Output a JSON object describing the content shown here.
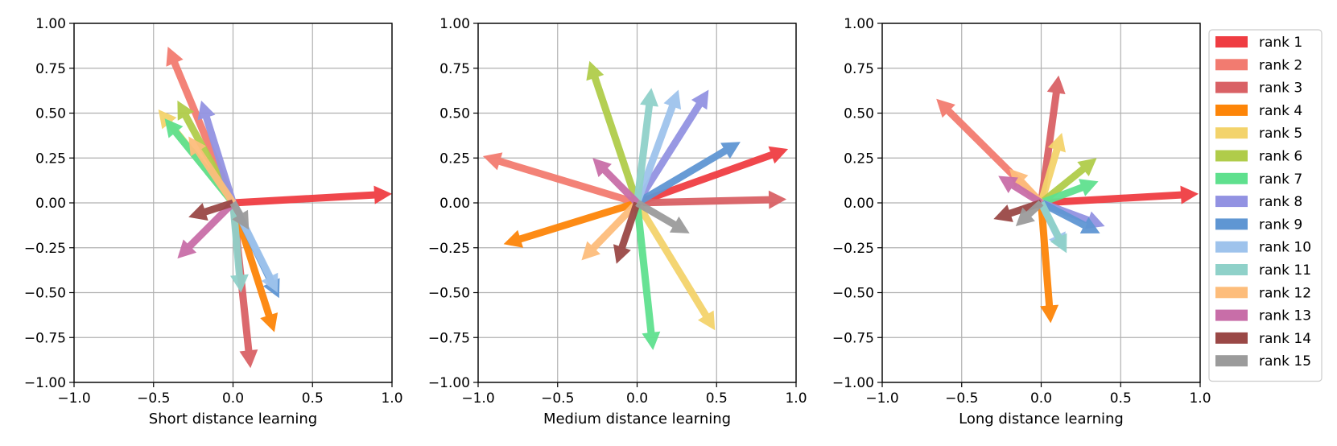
{
  "chart_data": [
    {
      "type": "quiver",
      "xlabel": "Short distance learning",
      "xlim": [
        -1.0,
        1.0
      ],
      "ylim": [
        -1.0,
        1.0
      ],
      "grid": true,
      "xticks": [
        "−1.0",
        "−0.5",
        "0.0",
        "0.5",
        "1.0"
      ],
      "yticks": [
        "−1.00",
        "−0.75",
        "−0.50",
        "−0.25",
        "0.00",
        "0.25",
        "0.50",
        "0.75",
        "1.00"
      ],
      "vectors": [
        {
          "series": "rank 1",
          "x": 1.0,
          "y": 0.05
        },
        {
          "series": "rank 2",
          "x": -0.41,
          "y": 0.87
        },
        {
          "series": "rank 3",
          "x": 0.11,
          "y": -0.92
        },
        {
          "series": "rank 4",
          "x": 0.26,
          "y": -0.72
        },
        {
          "series": "rank 5",
          "x": -0.47,
          "y": 0.52
        },
        {
          "series": "rank 6",
          "x": -0.35,
          "y": 0.57
        },
        {
          "series": "rank 7",
          "x": -0.43,
          "y": 0.47
        },
        {
          "series": "rank 8",
          "x": -0.2,
          "y": 0.57
        },
        {
          "series": "rank 9",
          "x": 0.29,
          "y": -0.53
        },
        {
          "series": "rank 10",
          "x": 0.28,
          "y": -0.5
        },
        {
          "series": "rank 11",
          "x": 0.05,
          "y": -0.5
        },
        {
          "series": "rank 12",
          "x": -0.28,
          "y": 0.37
        },
        {
          "series": "rank 13",
          "x": -0.35,
          "y": -0.31
        },
        {
          "series": "rank 14",
          "x": -0.28,
          "y": -0.08
        },
        {
          "series": "rank 15",
          "x": 0.1,
          "y": -0.15
        }
      ]
    },
    {
      "type": "quiver",
      "xlabel": "Medium distance learning",
      "xlim": [
        -1.0,
        1.0
      ],
      "ylim": [
        -1.0,
        1.0
      ],
      "grid": true,
      "xticks": [
        "−1.0",
        "−0.5",
        "0.0",
        "0.5",
        "1.0"
      ],
      "yticks": [
        "−1.00",
        "−0.75",
        "−0.50",
        "−0.25",
        "0.00",
        "0.25",
        "0.50",
        "0.75",
        "1.00"
      ],
      "vectors": [
        {
          "series": "rank 1",
          "x": 0.95,
          "y": 0.3
        },
        {
          "series": "rank 2",
          "x": -0.97,
          "y": 0.26
        },
        {
          "series": "rank 3",
          "x": 0.94,
          "y": 0.02
        },
        {
          "series": "rank 4",
          "x": -0.84,
          "y": -0.23
        },
        {
          "series": "rank 5",
          "x": 0.49,
          "y": -0.71
        },
        {
          "series": "rank 6",
          "x": -0.3,
          "y": 0.79
        },
        {
          "series": "rank 7",
          "x": 0.1,
          "y": -0.82
        },
        {
          "series": "rank 8",
          "x": 0.45,
          "y": 0.63
        },
        {
          "series": "rank 9",
          "x": 0.65,
          "y": 0.34
        },
        {
          "series": "rank 10",
          "x": 0.26,
          "y": 0.63
        },
        {
          "series": "rank 11",
          "x": 0.09,
          "y": 0.64
        },
        {
          "series": "rank 12",
          "x": -0.35,
          "y": -0.32
        },
        {
          "series": "rank 13",
          "x": -0.28,
          "y": 0.25
        },
        {
          "series": "rank 14",
          "x": -0.13,
          "y": -0.34
        },
        {
          "series": "rank 15",
          "x": 0.33,
          "y": -0.17
        }
      ]
    },
    {
      "type": "quiver",
      "xlabel": "Long distance learning",
      "xlim": [
        -1.0,
        1.0
      ],
      "ylim": [
        -1.0,
        1.0
      ],
      "grid": true,
      "xticks": [
        "−1.0",
        "−0.5",
        "0.0",
        "0.5",
        "1.0"
      ],
      "yticks": [
        "−1.00",
        "−0.75",
        "−0.50",
        "−0.25",
        "0.00",
        "0.25",
        "0.50",
        "0.75",
        "1.00"
      ],
      "vectors": [
        {
          "series": "rank 1",
          "x": 0.99,
          "y": 0.05
        },
        {
          "series": "rank 2",
          "x": -0.66,
          "y": 0.58
        },
        {
          "series": "rank 3",
          "x": 0.11,
          "y": 0.71
        },
        {
          "series": "rank 4",
          "x": 0.06,
          "y": -0.67
        },
        {
          "series": "rank 5",
          "x": 0.13,
          "y": 0.39
        },
        {
          "series": "rank 6",
          "x": 0.35,
          "y": 0.25
        },
        {
          "series": "rank 7",
          "x": 0.36,
          "y": 0.12
        },
        {
          "series": "rank 8",
          "x": 0.4,
          "y": -0.13
        },
        {
          "series": "rank 9",
          "x": 0.37,
          "y": -0.17
        },
        {
          "series": "rank 10",
          "x": 0.15,
          "y": -0.27
        },
        {
          "series": "rank 11",
          "x": 0.16,
          "y": -0.28
        },
        {
          "series": "rank 12",
          "x": -0.2,
          "y": 0.19
        },
        {
          "series": "rank 13",
          "x": -0.27,
          "y": 0.15
        },
        {
          "series": "rank 14",
          "x": -0.3,
          "y": -0.09
        },
        {
          "series": "rank 15",
          "x": -0.16,
          "y": -0.13
        }
      ]
    }
  ],
  "legend": {
    "placement": "right",
    "entries": [
      {
        "label": "rank 1",
        "color": "#ef3d42"
      },
      {
        "label": "rank 2",
        "color": "#f27b70"
      },
      {
        "label": "rank 3",
        "color": "#d96165"
      },
      {
        "label": "rank 4",
        "color": "#fd8508"
      },
      {
        "label": "rank 5",
        "color": "#f3d36b"
      },
      {
        "label": "rank 6",
        "color": "#b0cc4a"
      },
      {
        "label": "rank 7",
        "color": "#5fe08e"
      },
      {
        "label": "rank 8",
        "color": "#9292e2"
      },
      {
        "label": "rank 9",
        "color": "#5f96d3"
      },
      {
        "label": "rank 10",
        "color": "#9ec3ec"
      },
      {
        "label": "rank 11",
        "color": "#8fd1c9"
      },
      {
        "label": "rank 12",
        "color": "#fdbd7b"
      },
      {
        "label": "rank 13",
        "color": "#c86ea8"
      },
      {
        "label": "rank 14",
        "color": "#9a4846"
      },
      {
        "label": "rank 15",
        "color": "#9b9b9b"
      }
    ]
  }
}
